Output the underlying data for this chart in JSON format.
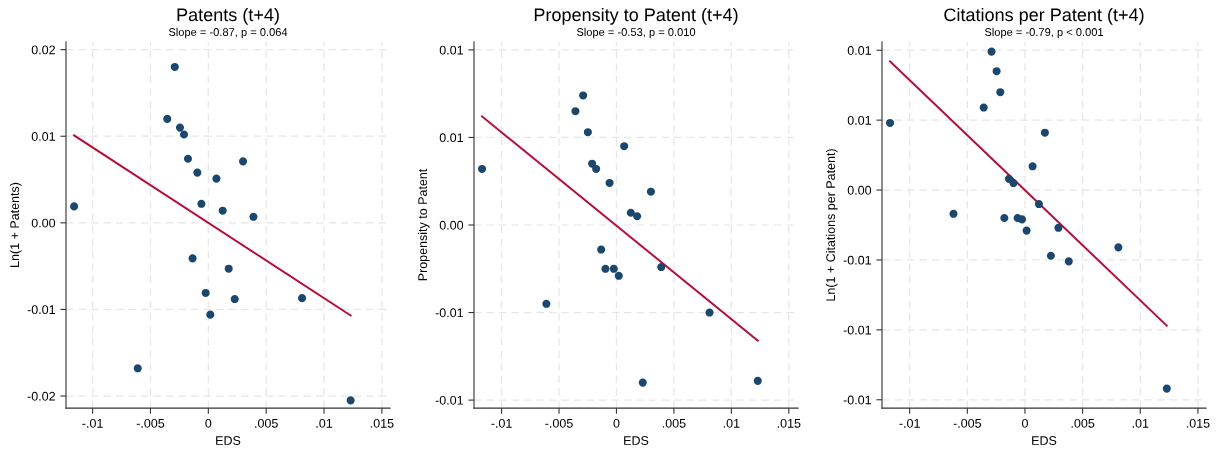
{
  "chart_data": [
    {
      "type": "scatter",
      "title": "Patents (t+4)",
      "subtitle": "Slope = -0.87, p = 0.064",
      "xlabel": "EDS",
      "ylabel": "Ln(1 + Patents)",
      "xlim": [
        -0.0123,
        0.0157
      ],
      "ylim": [
        -0.0214,
        0.0209
      ],
      "xticks": [
        {
          "value": -0.01,
          "label": "-.01"
        },
        {
          "value": -0.005,
          "label": "-.005"
        },
        0,
        {
          "value": 0.005,
          "label": ".005"
        },
        {
          "value": 0.01,
          "label": ".01"
        },
        {
          "value": 0.015,
          "label": ".015"
        }
      ],
      "yticks": [
        {
          "value": 0.02,
          "label": "0.02"
        },
        {
          "value": 0.01,
          "label": "0.01"
        },
        {
          "value": 0,
          "label": "0.00"
        },
        {
          "value": -0.01,
          "label": "-0.01"
        },
        {
          "value": -0.02,
          "label": "-0.02"
        }
      ],
      "grid": true,
      "series": [
        {
          "marker": "circle",
          "color": "#1a476f",
          "x": [
            -0.0116,
            -0.0029,
            -0.00355,
            -0.00245,
            -0.0021,
            -0.00176,
            -0.00095,
            0.0007,
            0.003,
            -0.0006,
            0.00124,
            0.0039,
            -0.00136,
            0.00176,
            -0.00023,
            0.00228,
            0.0081,
            0.00017,
            -0.0061,
            0.0123
          ],
          "values": [
            0.0019,
            0.018,
            0.012,
            0.011,
            0.0102,
            0.0074,
            0.0058,
            0.0051,
            0.0071,
            0.0022,
            0.0014,
            0.0007,
            -0.0041,
            -0.0053,
            -0.0081,
            -0.0088,
            -0.0087,
            -0.0106,
            -0.0168,
            -0.0205
          ]
        },
        {
          "type": "line",
          "color": "#c10534",
          "x": [
            -0.0116,
            0.0123
          ],
          "values": [
            0.0101,
            -0.0107
          ]
        }
      ]
    },
    {
      "type": "scatter",
      "title": "Propensity to Patent (t+4)",
      "subtitle": "Slope = -0.53, p = 0.010",
      "xlabel": "EDS",
      "ylabel": "Propensity to Patent",
      "xlim": [
        -0.0124,
        0.0158
      ],
      "ylim": [
        -0.01046,
        0.01046
      ],
      "xticks": [
        {
          "value": -0.01,
          "label": "-.01"
        },
        {
          "value": -0.005,
          "label": "-.005"
        },
        0,
        {
          "value": 0.005,
          "label": ".005"
        },
        {
          "value": 0.01,
          "label": ".01"
        },
        {
          "value": 0.015,
          "label": ".015"
        }
      ],
      "yticks": [
        {
          "value": 0.01,
          "label": "0.01"
        },
        {
          "value": 0.005,
          "label": "0.01"
        },
        {
          "value": 0,
          "label": "0.00"
        },
        {
          "value": -0.005,
          "label": "-0.01"
        },
        {
          "value": -0.01,
          "label": "-0.01"
        }
      ],
      "grid": true,
      "series": [
        {
          "marker": "circle",
          "color": "#1a476f",
          "x": [
            -0.0117,
            -0.0029,
            -0.00357,
            -0.00249,
            0.00067,
            -0.00212,
            -0.00177,
            -0.0006,
            0.003,
            0.00125,
            0.0018,
            -0.00133,
            -0.00096,
            -0.00023,
            0.0002,
            0.0039,
            -0.0061,
            0.0081,
            0.00229,
            0.0123
          ],
          "values": [
            0.0032,
            0.0074,
            0.0065,
            0.0053,
            0.0045,
            0.0035,
            0.0032,
            0.0024,
            0.0019,
            0.0007,
            0.0005,
            -0.0014,
            -0.0025,
            -0.0025,
            -0.0029,
            -0.0024,
            -0.0045,
            -0.005,
            -0.009,
            -0.0089
          ]
        },
        {
          "type": "line",
          "color": "#c10534",
          "x": [
            -0.0117,
            0.0123
          ],
          "values": [
            0.0062,
            -0.0066
          ]
        }
      ]
    },
    {
      "type": "scatter",
      "title": "Citations per Patent (t+4)",
      "subtitle": "Slope = -0.79, p < 0.001",
      "xlabel": "EDS",
      "ylabel": "Ln(1 + Citations per Patent)",
      "xlim": [
        -0.0124,
        0.0157
      ],
      "ylim": [
        -0.0156,
        0.0106
      ],
      "xticks": [
        {
          "value": -0.01,
          "label": "-.01"
        },
        {
          "value": -0.005,
          "label": "-.005"
        },
        0,
        {
          "value": 0.005,
          "label": ".005"
        },
        {
          "value": 0.01,
          "label": ".01"
        },
        {
          "value": 0.015,
          "label": ".015"
        }
      ],
      "yticks": [
        {
          "value": 0.01,
          "label": "0.01"
        },
        {
          "value": 0.005,
          "label": "0.01"
        },
        {
          "value": 0,
          "label": "0.00"
        },
        {
          "value": -0.005,
          "label": "-0.01"
        },
        {
          "value": -0.01,
          "label": "-0.01"
        },
        {
          "value": -0.015,
          "label": "-0.01"
        }
      ],
      "grid": true,
      "series": [
        {
          "marker": "circle",
          "color": "#1a476f",
          "x": [
            -0.0117,
            -0.0029,
            -0.00246,
            -0.00214,
            -0.00358,
            0.00173,
            0.00066,
            -0.00139,
            -0.001,
            0.00121,
            -0.00179,
            -0.00064,
            -0.00026,
            0.00014,
            0.0029,
            -0.0062,
            0.0081,
            0.00225,
            0.0038,
            0.0123
          ],
          "values": [
            0.0048,
            0.0099,
            0.0085,
            0.007,
            0.0059,
            0.0041,
            0.0017,
            0.0008,
            0.0005,
            -0.001,
            -0.002,
            -0.002,
            -0.0021,
            -0.0029,
            -0.0027,
            -0.0017,
            -0.0041,
            -0.0047,
            -0.0051,
            -0.0142
          ]
        },
        {
          "type": "line",
          "color": "#c10534",
          "x": [
            -0.0117,
            0.0123
          ],
          "values": [
            0.0092,
            -0.0097
          ]
        }
      ]
    }
  ]
}
